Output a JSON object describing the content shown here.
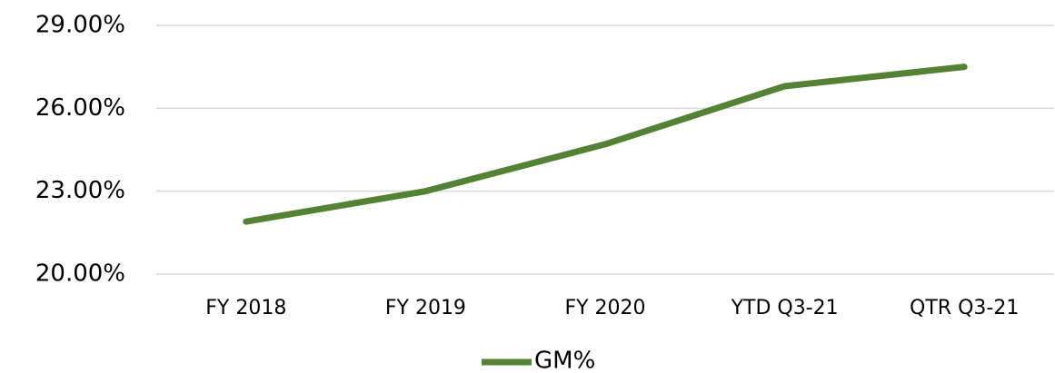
{
  "chart_data": {
    "type": "line",
    "categories": [
      "FY 2018",
      "FY 2019",
      "FY 2020",
      "YTD Q3-21",
      "QTR Q3-21"
    ],
    "series": [
      {
        "name": "GM%",
        "color": "#548235",
        "values": [
          21.9,
          23.0,
          24.7,
          26.8,
          27.5
        ]
      }
    ],
    "ylim": [
      20,
      29
    ],
    "yticks": [
      {
        "value": 20,
        "label": "20.00%"
      },
      {
        "value": 23,
        "label": "23.00%"
      },
      {
        "value": 26,
        "label": "26.00%"
      },
      {
        "value": 29,
        "label": "29.00%"
      }
    ],
    "grid": true,
    "legend": "bottom"
  }
}
